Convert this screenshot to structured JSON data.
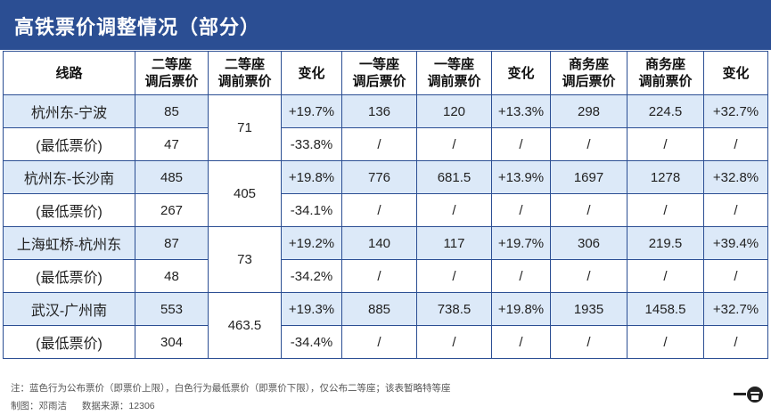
{
  "title": "高铁票价调整情况（部分）",
  "columns": [
    "线路",
    "二等座调后票价",
    "二等座调前票价",
    "变化",
    "一等座调后票价",
    "一等座调前票价",
    "变化",
    "商务座调后票价",
    "商务座调前票价",
    "变化"
  ],
  "header": {
    "route": "线路",
    "second_after_1": "二等座",
    "second_after_2": "调后票价",
    "second_before_1": "二等座",
    "second_before_2": "调前票价",
    "change": "变化",
    "first_after_1": "一等座",
    "first_after_2": "调后票价",
    "first_before_1": "一等座",
    "first_before_2": "调前票价",
    "business_after_1": "商务座",
    "business_after_2": "调后票价",
    "business_before_1": "商务座",
    "business_before_2": "调前票价"
  },
  "routes": [
    {
      "name": "杭州东-宁波",
      "second_before": "71",
      "published": {
        "second_after": "85",
        "change1": "+19.7%",
        "first_after": "136",
        "first_before": "120",
        "change2": "+13.3%",
        "business_after": "298",
        "business_before": "224.5",
        "change3": "+32.7%"
      },
      "lowest": {
        "label": "(最低票价)",
        "second_after": "47",
        "change1": "-33.8%",
        "first_after": "/",
        "first_before": "/",
        "change2": "/",
        "business_after": "/",
        "business_before": "/",
        "change3": "/"
      }
    },
    {
      "name": "杭州东-长沙南",
      "second_before": "405",
      "published": {
        "second_after": "485",
        "change1": "+19.8%",
        "first_after": "776",
        "first_before": "681.5",
        "change2": "+13.9%",
        "business_after": "1697",
        "business_before": "1278",
        "change3": "+32.8%"
      },
      "lowest": {
        "label": "(最低票价)",
        "second_after": "267",
        "change1": "-34.1%",
        "first_after": "/",
        "first_before": "/",
        "change2": "/",
        "business_after": "/",
        "business_before": "/",
        "change3": "/"
      }
    },
    {
      "name": "上海虹桥-杭州东",
      "second_before": "73",
      "published": {
        "second_after": "87",
        "change1": "+19.2%",
        "first_after": "140",
        "first_before": "117",
        "change2": "+19.7%",
        "business_after": "306",
        "business_before": "219.5",
        "change3": "+39.4%"
      },
      "lowest": {
        "label": "(最低票价)",
        "second_after": "48",
        "change1": "-34.2%",
        "first_after": "/",
        "first_before": "/",
        "change2": "/",
        "business_after": "/",
        "business_before": "/",
        "change3": "/"
      }
    },
    {
      "name": "武汉-广州南",
      "second_before": "463.5",
      "published": {
        "second_after": "553",
        "change1": "+19.3%",
        "first_after": "885",
        "first_before": "738.5",
        "change2": "+19.8%",
        "business_after": "1935",
        "business_before": "1458.5",
        "change3": "+32.7%"
      },
      "lowest": {
        "label": "(最低票价)",
        "second_after": "304",
        "change1": "-34.4%",
        "first_after": "/",
        "first_before": "/",
        "change2": "/",
        "business_after": "/",
        "business_before": "/",
        "change3": "/"
      }
    }
  ],
  "footer": {
    "note": "注：蓝色行为公布票价（即票价上限），白色行为最低票价（即票价下限），仅公布二等座；该表暂略特等座",
    "author": "制图：邓雨洁",
    "source": "数据来源：12306"
  },
  "colors": {
    "header_bar": "#2b4e93",
    "published_row": "#dce9f8",
    "grid": "#2b4e93"
  },
  "logo_icon": "brand-logo-icon"
}
